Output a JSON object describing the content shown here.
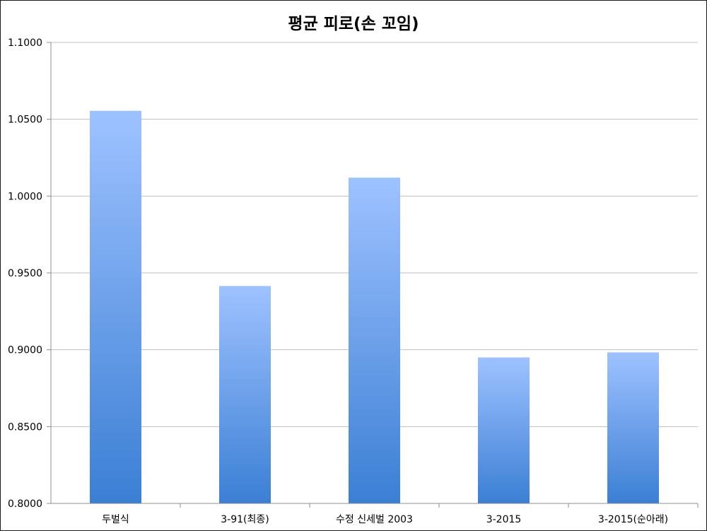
{
  "chart_data": {
    "type": "bar",
    "title": "평균 피로(손 꼬임)",
    "categories": [
      "두벌식",
      "3-91(최종)",
      "수정 신세벌 2003",
      "3-2015",
      "3-2015(순아래)"
    ],
    "series": [
      {
        "values": [
          1.0555,
          0.9415,
          1.012,
          0.895,
          0.8983
        ]
      }
    ],
    "xlabel": "",
    "ylabel": "",
    "ylim": [
      0.8,
      1.1
    ],
    "yticks": [
      "0.8000",
      "0.8500",
      "0.9000",
      "0.9500",
      "1.0000",
      "1.0500",
      "1.1000"
    ],
    "grid": true,
    "legend": "none",
    "colors": {
      "bar_top": "#9ec2ff",
      "bar_bottom": "#3b7fd4",
      "grid": "#bfbfbf",
      "axis": "#8c8c8c"
    }
  }
}
